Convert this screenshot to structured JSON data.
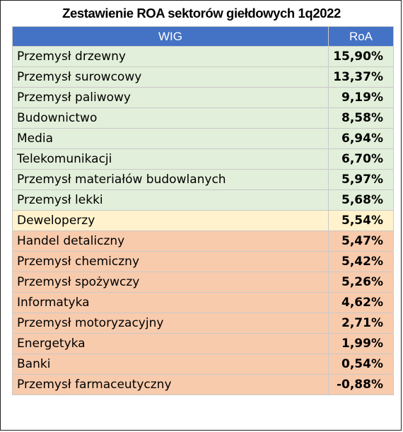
{
  "colors": {
    "header": "#4472c4",
    "group_green": "#e2efda",
    "group_yellow": "#fff2cc",
    "group_orange": "#f8cbad"
  },
  "chart_data": {
    "type": "table",
    "title": "Zestawienie ROA sektorów giełdowych 1q2022",
    "columns": [
      "WIG",
      "RoA"
    ],
    "rows": [
      {
        "sector": "Przemysł drzewny",
        "value_text": "15,90%",
        "value": 15.9,
        "group": "green"
      },
      {
        "sector": "Przemysł surowcowy",
        "value_text": "13,37%",
        "value": 13.37,
        "group": "green"
      },
      {
        "sector": "Przemysł paliwowy",
        "value_text": "9,19%",
        "value": 9.19,
        "group": "green"
      },
      {
        "sector": "Budownictwo",
        "value_text": "8,58%",
        "value": 8.58,
        "group": "green"
      },
      {
        "sector": "Media",
        "value_text": "6,94%",
        "value": 6.94,
        "group": "green"
      },
      {
        "sector": "Telekomunikacji",
        "value_text": "6,70%",
        "value": 6.7,
        "group": "green"
      },
      {
        "sector": "Przemysł materiałów budowlanych",
        "value_text": "5,97%",
        "value": 5.97,
        "group": "green"
      },
      {
        "sector": "Przemysł lekki",
        "value_text": "5,68%",
        "value": 5.68,
        "group": "green"
      },
      {
        "sector": "Deweloperzy",
        "value_text": "5,54%",
        "value": 5.54,
        "group": "yellow"
      },
      {
        "sector": "Handel detaliczny",
        "value_text": "5,47%",
        "value": 5.47,
        "group": "orange"
      },
      {
        "sector": "Przemysł chemiczny",
        "value_text": "5,42%",
        "value": 5.42,
        "group": "orange"
      },
      {
        "sector": "Przemysł spożywczy",
        "value_text": "5,26%",
        "value": 5.26,
        "group": "orange"
      },
      {
        "sector": "Informatyka",
        "value_text": "4,62%",
        "value": 4.62,
        "group": "orange"
      },
      {
        "sector": "Przemysł motoryzacyjny",
        "value_text": "2,71%",
        "value": 2.71,
        "group": "orange"
      },
      {
        "sector": "Energetyka",
        "value_text": "1,99%",
        "value": 1.99,
        "group": "orange"
      },
      {
        "sector": "Banki",
        "value_text": "0,54%",
        "value": 0.54,
        "group": "orange"
      },
      {
        "sector": "Przemysł farmaceutyczny",
        "value_text": "-0,88%",
        "value": -0.88,
        "group": "orange"
      }
    ]
  }
}
